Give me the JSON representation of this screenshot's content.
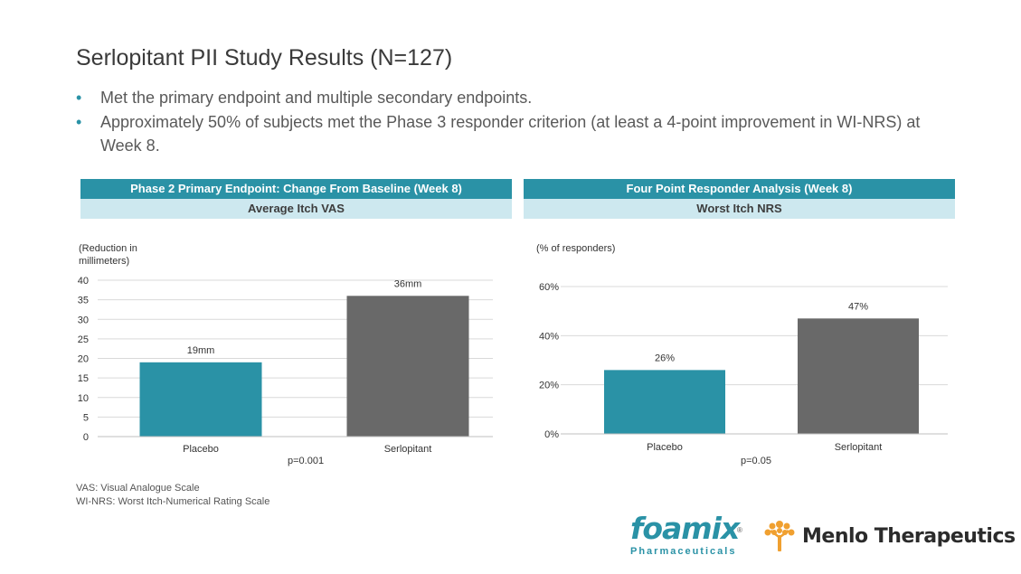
{
  "slide": {
    "title": "Serlopitant PII Study Results (N=127)",
    "bullets": [
      "Met the primary endpoint and multiple secondary endpoints.",
      "Approximately 50% of subjects met the Phase 3 responder criterion (at least a 4-point improvement in WI-NRS) at Week 8."
    ],
    "bullet_glyph": "•",
    "footnotes": [
      "VAS: Visual Analogue Scale",
      "WI-NRS: Worst Itch-Numerical Rating Scale"
    ]
  },
  "panels": [
    {
      "header": "Phase 2 Primary Endpoint: Change From Baseline (Week 8)",
      "subheader": "Average Itch VAS",
      "unit_label": "(Reduction in millimeters)",
      "p_value": "p=0.001"
    },
    {
      "header": "Four Point Responder Analysis (Week 8)",
      "subheader": "Worst Itch NRS",
      "unit_label": "(% of responders)",
      "p_value": "p=0.05"
    }
  ],
  "chart_data": [
    {
      "type": "bar",
      "categories": [
        "Placebo",
        "Serlopitant"
      ],
      "values": [
        19,
        36
      ],
      "data_labels": [
        "19mm",
        "36mm"
      ],
      "ylim": [
        0,
        40
      ],
      "yticks": [
        0,
        5,
        10,
        15,
        20,
        25,
        30,
        35,
        40
      ],
      "ytick_labels": [
        "0",
        "5",
        "10",
        "15",
        "20",
        "25",
        "30",
        "35",
        "40"
      ],
      "grid": true,
      "colors": [
        "#2a92a6",
        "#696969"
      ]
    },
    {
      "type": "bar",
      "categories": [
        "Placebo",
        "Serlopitant"
      ],
      "values": [
        26,
        47
      ],
      "data_labels": [
        "26%",
        "47%"
      ],
      "ylim": [
        0,
        60
      ],
      "yticks": [
        0,
        20,
        40,
        60
      ],
      "ytick_labels": [
        "0%",
        "20%",
        "40%",
        "60%"
      ],
      "grid": true,
      "colors": [
        "#2a92a6",
        "#696969"
      ]
    }
  ],
  "logos": {
    "foamix": {
      "wordmark": "foamix",
      "registered": "®",
      "tagline": "Pharmaceuticals",
      "color": "#2a92a6"
    },
    "menlo": {
      "wordmark": "Menlo Therapeutics",
      "icon": "tree-icon",
      "icon_color": "#f0a030"
    }
  }
}
